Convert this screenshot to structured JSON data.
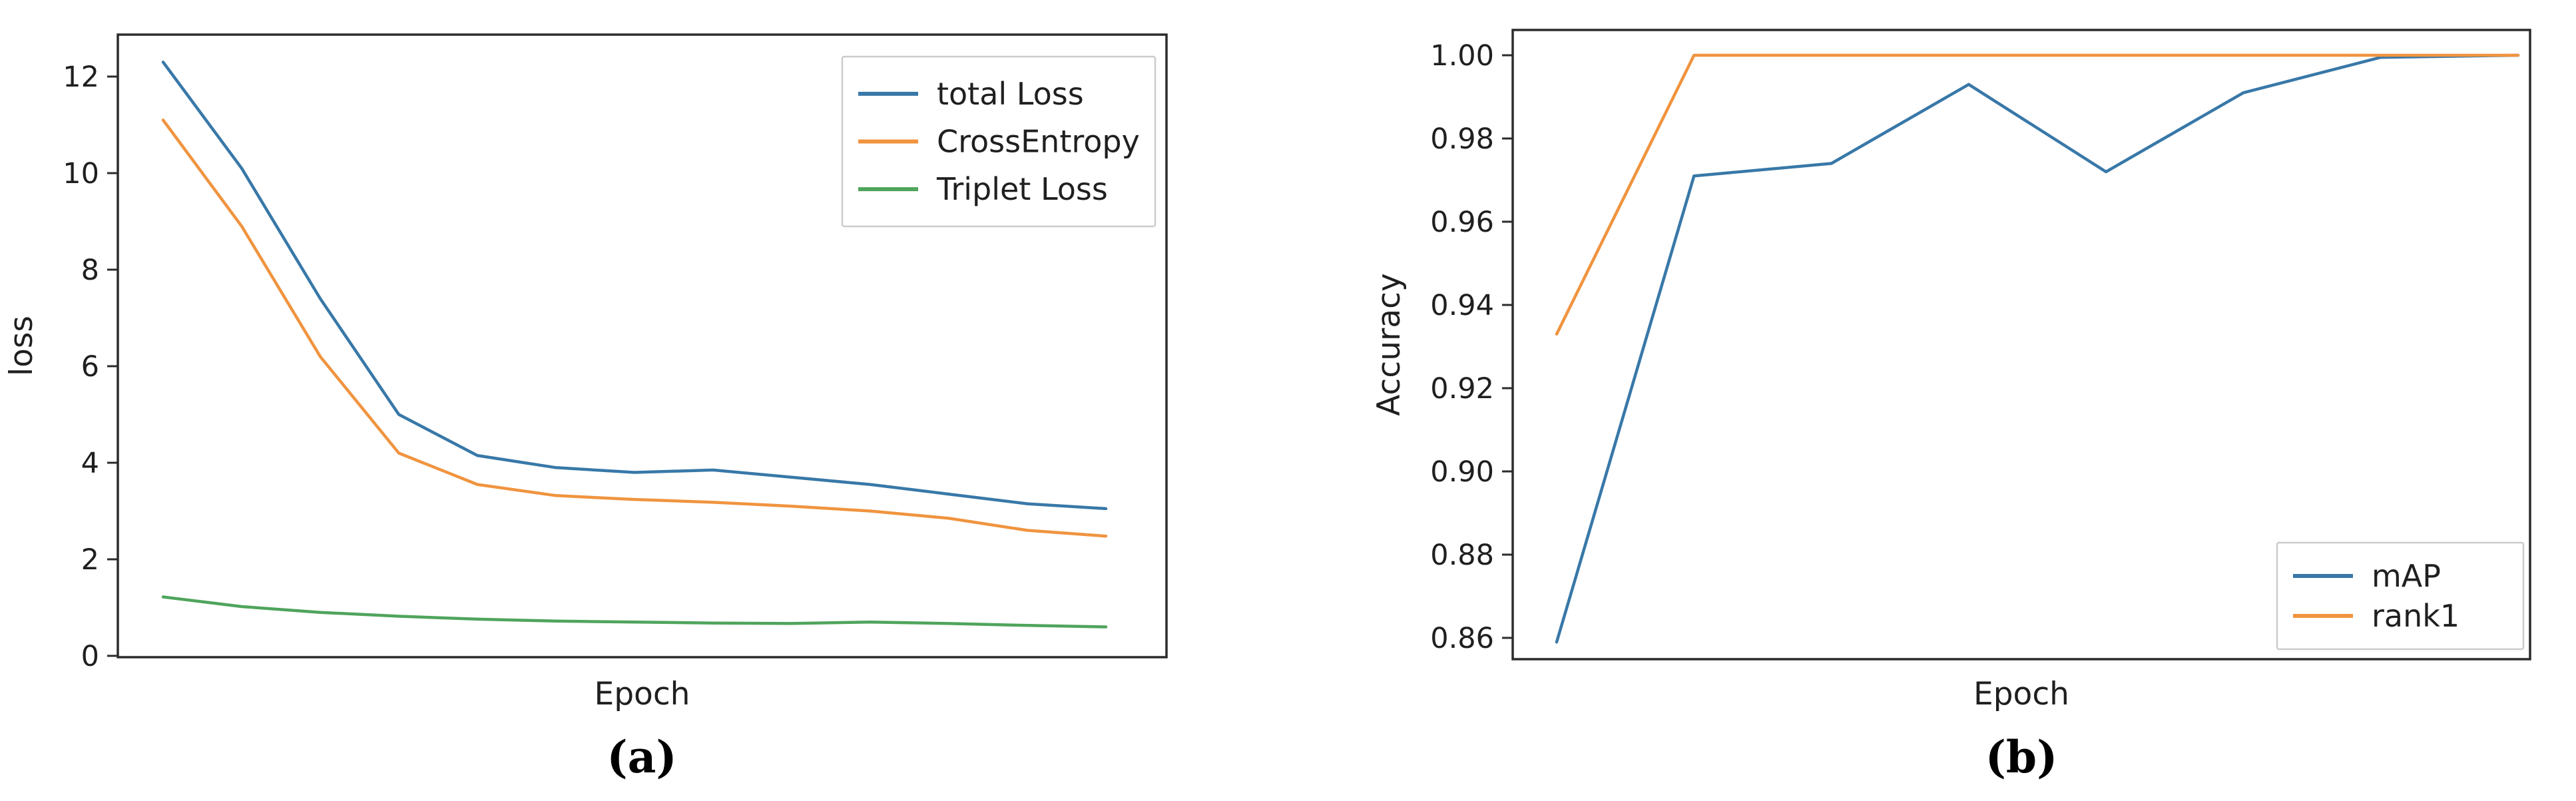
{
  "figure": {
    "background": "#ffffff",
    "text_color": "#1f1f1f",
    "spine_color": "#2b2b2b",
    "legend_border_color": "#cccccc"
  },
  "chart_data": [
    {
      "type": "line",
      "panel": "a",
      "caption": "(a)",
      "title": "",
      "xlabel": "Epoch",
      "ylabel": "loss",
      "x": [
        1,
        2,
        3,
        4,
        5,
        6,
        7,
        8,
        9,
        10,
        11,
        12,
        13
      ],
      "series": [
        {
          "name": "total Loss",
          "color": "#3878a8",
          "values": [
            12.3,
            10.1,
            7.4,
            5.0,
            4.15,
            3.9,
            3.8,
            3.85,
            3.7,
            3.55,
            3.35,
            3.15,
            3.05
          ]
        },
        {
          "name": "CrossEntropy",
          "color": "#f0943f",
          "values": [
            11.1,
            8.9,
            6.2,
            4.2,
            3.55,
            3.32,
            3.24,
            3.18,
            3.1,
            3.0,
            2.85,
            2.6,
            2.48
          ]
        },
        {
          "name": "Triplet Loss",
          "color": "#4fa45c",
          "values": [
            1.22,
            1.02,
            0.9,
            0.82,
            0.76,
            0.72,
            0.7,
            0.68,
            0.67,
            0.7,
            0.67,
            0.63,
            0.6
          ]
        }
      ],
      "yticks": [
        "0",
        "2",
        "4",
        "6",
        "8",
        "10",
        "12"
      ],
      "ylim": [
        -0.0276,
        12.869
      ],
      "x_tick_labels_shown": false,
      "grid": false,
      "legend_position": "upper-right"
    },
    {
      "type": "line",
      "panel": "b",
      "caption": "(b)",
      "title": "",
      "xlabel": "Epoch",
      "ylabel": "Accuracy",
      "x": [
        1,
        2,
        3,
        4,
        5,
        6,
        7,
        8
      ],
      "series": [
        {
          "name": "mAP",
          "color": "#3878a8",
          "values": [
            0.859,
            0.971,
            0.974,
            0.993,
            0.972,
            0.991,
            0.9995,
            1.0
          ]
        },
        {
          "name": "rank1",
          "color": "#f0943f",
          "values": [
            0.933,
            1.0,
            1.0,
            1.0,
            1.0,
            1.0,
            1.0,
            1.0
          ]
        }
      ],
      "yticks": [
        "0.86",
        "0.88",
        "0.90",
        "0.92",
        "0.94",
        "0.96",
        "0.98",
        "1.00"
      ],
      "ylim": [
        0.85488,
        1.00608
      ],
      "x_tick_labels_shown": false,
      "grid": false,
      "legend_position": "lower-right"
    }
  ]
}
